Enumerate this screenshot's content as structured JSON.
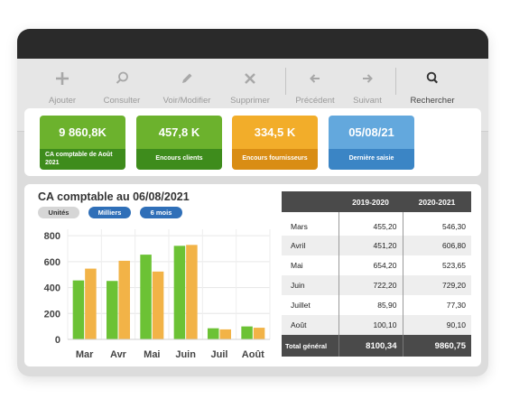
{
  "toolbar": {
    "items": [
      {
        "label": "Ajouter",
        "icon": "plus-icon"
      },
      {
        "label": "Consulter",
        "icon": "magnifier-icon"
      },
      {
        "label": "Voir/Modifier",
        "icon": "pencil-icon"
      },
      {
        "label": "Supprimer",
        "icon": "x-icon"
      },
      {
        "label": "Précédent",
        "icon": "arrow-left-icon"
      },
      {
        "label": "Suivant",
        "icon": "arrow-right-icon"
      },
      {
        "label": "Rechercher",
        "icon": "search-icon"
      }
    ]
  },
  "kpis": [
    {
      "value": "9 860,8K",
      "caption": "CA comptable de Août 2021",
      "color": "#6cb22d",
      "caption_color": "#3e8c1c"
    },
    {
      "value": "457,8 K",
      "caption": "Encours clients",
      "color": "#6cb22d",
      "caption_color": "#3e8c1c"
    },
    {
      "value": "334,5 K",
      "caption": "Encours fournisseurs",
      "color": "#f2ad2a",
      "caption_color": "#d98d14"
    },
    {
      "value": "05/08/21",
      "caption": "Dernière saisie",
      "color": "#63a8dd",
      "caption_color": "#3b85c5"
    }
  ],
  "chart": {
    "title": "CA comptable au 06/08/2021",
    "filters": [
      {
        "label": "Unités",
        "active": false
      },
      {
        "label": "Milliers",
        "active": true
      },
      {
        "label": "6 mois",
        "active": true
      }
    ]
  },
  "chart_data": {
    "type": "bar",
    "categories": [
      "Mar",
      "Avr",
      "Mai",
      "Juin",
      "Juil",
      "Août"
    ],
    "series": [
      {
        "values": [
          455.2,
          451.2,
          654.2,
          722.2,
          85.9,
          100.1
        ],
        "color": "#6cc235"
      },
      {
        "values": [
          546.3,
          606.8,
          523.65,
          729.2,
          77.3,
          90.1
        ],
        "color": "#f2b347"
      }
    ],
    "yticks": [
      0,
      200,
      400,
      600,
      800
    ],
    "ylim": [
      0,
      850
    ],
    "grid": true
  },
  "table": {
    "headers": [
      "",
      "2019-2020",
      "2020-2021"
    ],
    "rows": [
      [
        "Mars",
        "455,20",
        "546,30"
      ],
      [
        "Avril",
        "451,20",
        "606,80"
      ],
      [
        "Mai",
        "654,20",
        "523,65"
      ],
      [
        "Juin",
        "722,20",
        "729,20"
      ],
      [
        "Juillet",
        "85,90",
        "77,30"
      ],
      [
        "Août",
        "100,10",
        "90,10"
      ]
    ],
    "total": [
      "Total général",
      "8100,34",
      "9860,75"
    ]
  }
}
